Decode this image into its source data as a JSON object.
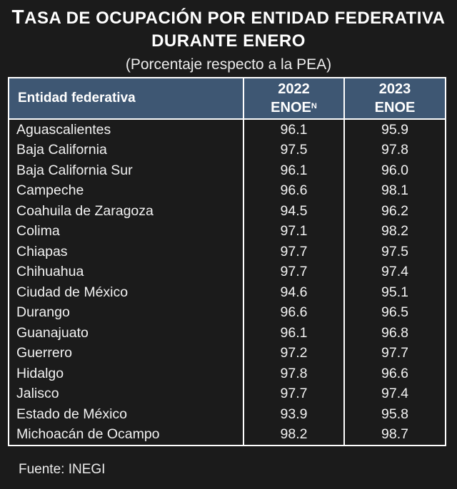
{
  "title_first_letter": "T",
  "title_line1_rest": "ASA DE OCUPACIÓN POR ENTIDAD FEDERATIVA",
  "title_line2": "DURANTE ENERO",
  "subtitle": "(Porcentaje respecto a la PEA)",
  "source": "Fuente: INEGI",
  "colors": {
    "background": "#1b1b1b",
    "header": "#3e5773",
    "text": "#ffffff"
  },
  "chart_data": {
    "type": "table",
    "columns": [
      "Entidad federativa",
      "2022 ENOE",
      "2023 ENOE"
    ],
    "header": {
      "entity": "Entidad federativa",
      "col2_year": "2022",
      "col2_label": "ENOE",
      "col2_sup": "N",
      "col3_year": "2023",
      "col3_label": "ENOE"
    },
    "rows": [
      {
        "entidad": "Aguascalientes",
        "v2022": "96.1",
        "v2023": "95.9"
      },
      {
        "entidad": "Baja California",
        "v2022": "97.5",
        "v2023": "97.8"
      },
      {
        "entidad": "Baja California Sur",
        "v2022": "96.1",
        "v2023": "96.0"
      },
      {
        "entidad": "Campeche",
        "v2022": "96.6",
        "v2023": "98.1"
      },
      {
        "entidad": "Coahuila de Zaragoza",
        "v2022": "94.5",
        "v2023": "96.2"
      },
      {
        "entidad": "Colima",
        "v2022": "97.1",
        "v2023": "98.2"
      },
      {
        "entidad": "Chiapas",
        "v2022": "97.7",
        "v2023": "97.5"
      },
      {
        "entidad": "Chihuahua",
        "v2022": "97.7",
        "v2023": "97.4"
      },
      {
        "entidad": "Ciudad de México",
        "v2022": "94.6",
        "v2023": "95.1"
      },
      {
        "entidad": "Durango",
        "v2022": "96.6",
        "v2023": "96.5"
      },
      {
        "entidad": "Guanajuato",
        "v2022": "96.1",
        "v2023": "96.8"
      },
      {
        "entidad": "Guerrero",
        "v2022": "97.2",
        "v2023": "97.7"
      },
      {
        "entidad": "Hidalgo",
        "v2022": "97.8",
        "v2023": "96.6"
      },
      {
        "entidad": "Jalisco",
        "v2022": "97.7",
        "v2023": "97.4"
      },
      {
        "entidad": "Estado de México",
        "v2022": "93.9",
        "v2023": "95.8"
      },
      {
        "entidad": "Michoacán de Ocampo",
        "v2022": "98.2",
        "v2023": "98.7"
      }
    ]
  }
}
